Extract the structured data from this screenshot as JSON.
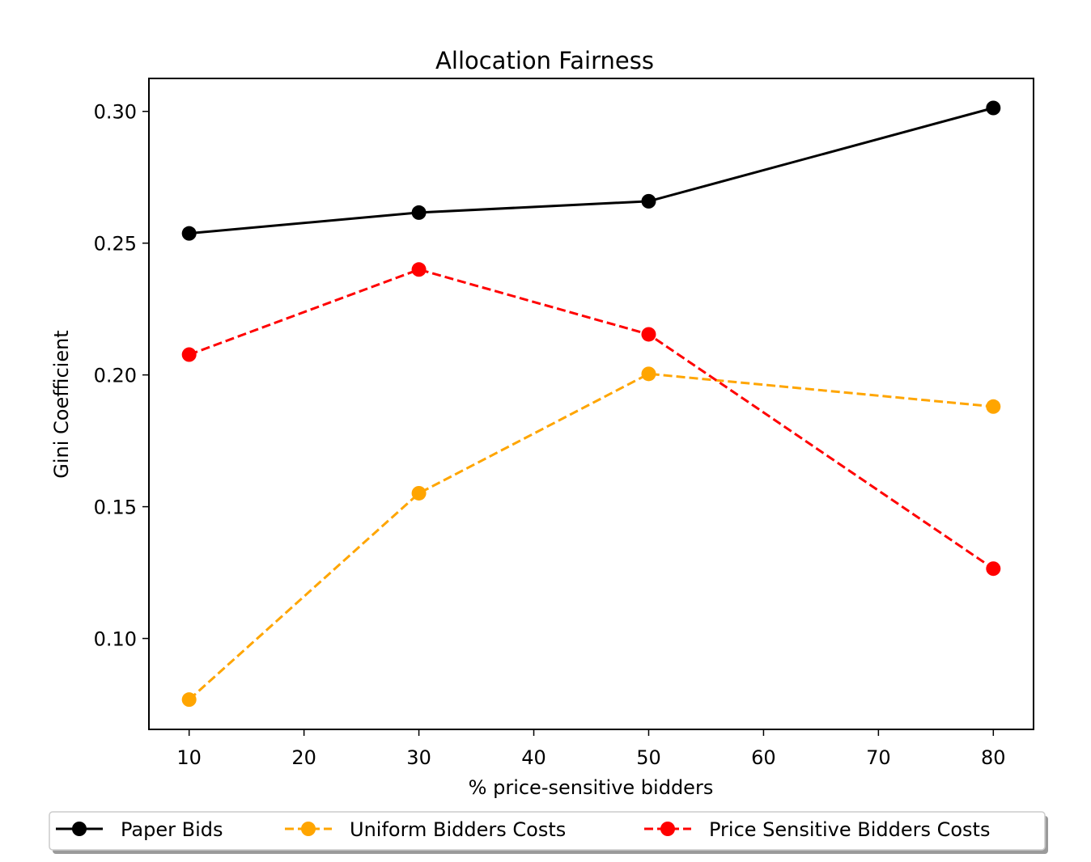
{
  "chart_data": {
    "type": "line",
    "title": "Allocation Fairness",
    "xlabel": "% price-sensitive bidders",
    "ylabel": "Gini Coefficient",
    "x": [
      10,
      30,
      50,
      80
    ],
    "xlim": [
      6.5,
      83.5
    ],
    "ylim": [
      0.0655,
      0.3125
    ],
    "xticks": [
      "10",
      "20",
      "30",
      "40",
      "50",
      "60",
      "70",
      "80"
    ],
    "yticks": [
      "0.10",
      "0.15",
      "0.20",
      "0.25",
      "0.30"
    ],
    "grid": false,
    "legend_position": "bottom-center",
    "series": [
      {
        "name": "Paper Bids",
        "values": [
          0.2537,
          0.2616,
          0.2659,
          0.3013
        ],
        "color": "#000000",
        "dash": "solid",
        "marker": "circle"
      },
      {
        "name": "Uniform Bidders Costs",
        "values": [
          0.0768,
          0.1551,
          0.2004,
          0.188
        ],
        "color": "#ffa500",
        "dash": "dashed",
        "marker": "circle"
      },
      {
        "name": "Price Sensitive Bidders Costs",
        "values": [
          0.2077,
          0.24,
          0.2154,
          0.1265
        ],
        "color": "#ff0000",
        "dash": "dashed",
        "marker": "circle"
      }
    ]
  }
}
